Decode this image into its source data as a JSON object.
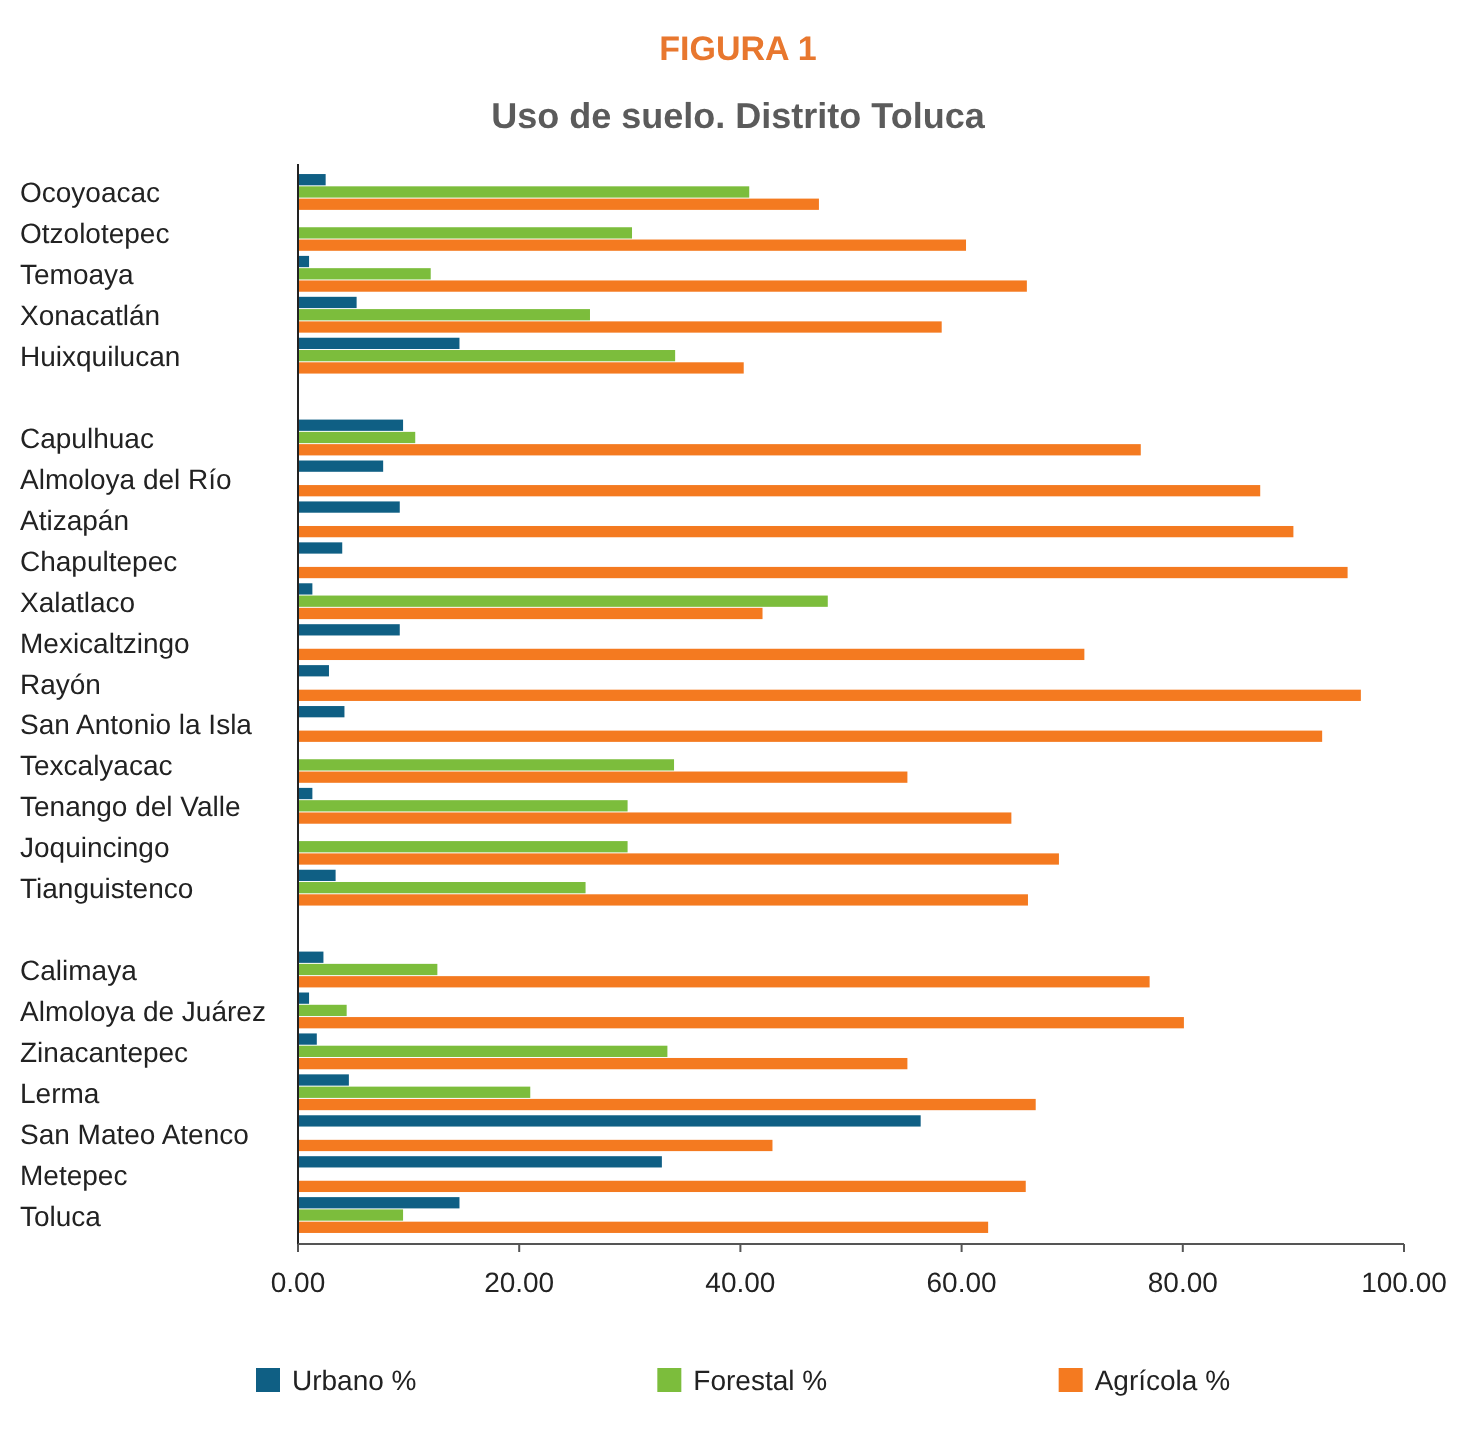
{
  "chart_data": {
    "type": "bar",
    "orientation": "horizontal",
    "title": "FIGURA 1",
    "subtitle": "Uso de suelo. Distrito Toluca",
    "categories": [
      "Ocoyoacac",
      "Otzolotepec",
      "Temoaya",
      "Xonacatlán",
      "Huixquilucan",
      null,
      "Capulhuac",
      "Almoloya del Río",
      "Atizapán",
      "Chapultepec",
      "Xalatlaco",
      "Mexicaltzingo",
      "Rayón",
      "San Antonio la Isla",
      "Texcalyacac",
      "Tenango del Valle",
      "Joquincingo",
      "Tianguistenco",
      null,
      "Calimaya",
      "Almoloya de Juárez",
      "Zinacantepec",
      "Lerma",
      "San Mateo Atenco",
      "Metepec",
      "Toluca"
    ],
    "series": [
      {
        "name": "Urbano %",
        "color": "#0f5f84",
        "values": [
          2.5,
          null,
          1.0,
          5.3,
          14.6,
          null,
          9.5,
          7.7,
          9.2,
          4.0,
          1.3,
          9.2,
          2.8,
          4.2,
          null,
          1.3,
          null,
          3.4,
          null,
          2.3,
          1.0,
          1.7,
          4.6,
          56.3,
          32.9,
          14.6
        ]
      },
      {
        "name": "Forestal %",
        "color": "#7cbd3c",
        "values": [
          40.8,
          30.2,
          12.0,
          26.4,
          34.1,
          null,
          10.6,
          null,
          null,
          null,
          47.9,
          null,
          null,
          null,
          34.0,
          29.8,
          29.8,
          26.0,
          null,
          12.6,
          4.4,
          33.4,
          21.0,
          null,
          null,
          9.5
        ]
      },
      {
        "name": "Agrícola %",
        "color": "#f47a20",
        "values": [
          47.1,
          60.4,
          65.9,
          58.2,
          40.3,
          null,
          76.2,
          87.0,
          90.0,
          94.9,
          42.0,
          71.1,
          96.1,
          92.6,
          55.1,
          64.5,
          68.8,
          66.0,
          null,
          77.0,
          80.1,
          55.1,
          66.7,
          42.9,
          65.8,
          62.4
        ]
      }
    ],
    "xlim": [
      0,
      100
    ],
    "xticks": [
      {
        "value": 0,
        "label": "0.00"
      },
      {
        "value": 20,
        "label": "20.00"
      },
      {
        "value": 40,
        "label": "40.00"
      },
      {
        "value": 60,
        "label": "60.00"
      },
      {
        "value": 80,
        "label": "80.00"
      },
      {
        "value": 100,
        "label": "100.00"
      }
    ],
    "legend": "bottom",
    "grid": false
  }
}
